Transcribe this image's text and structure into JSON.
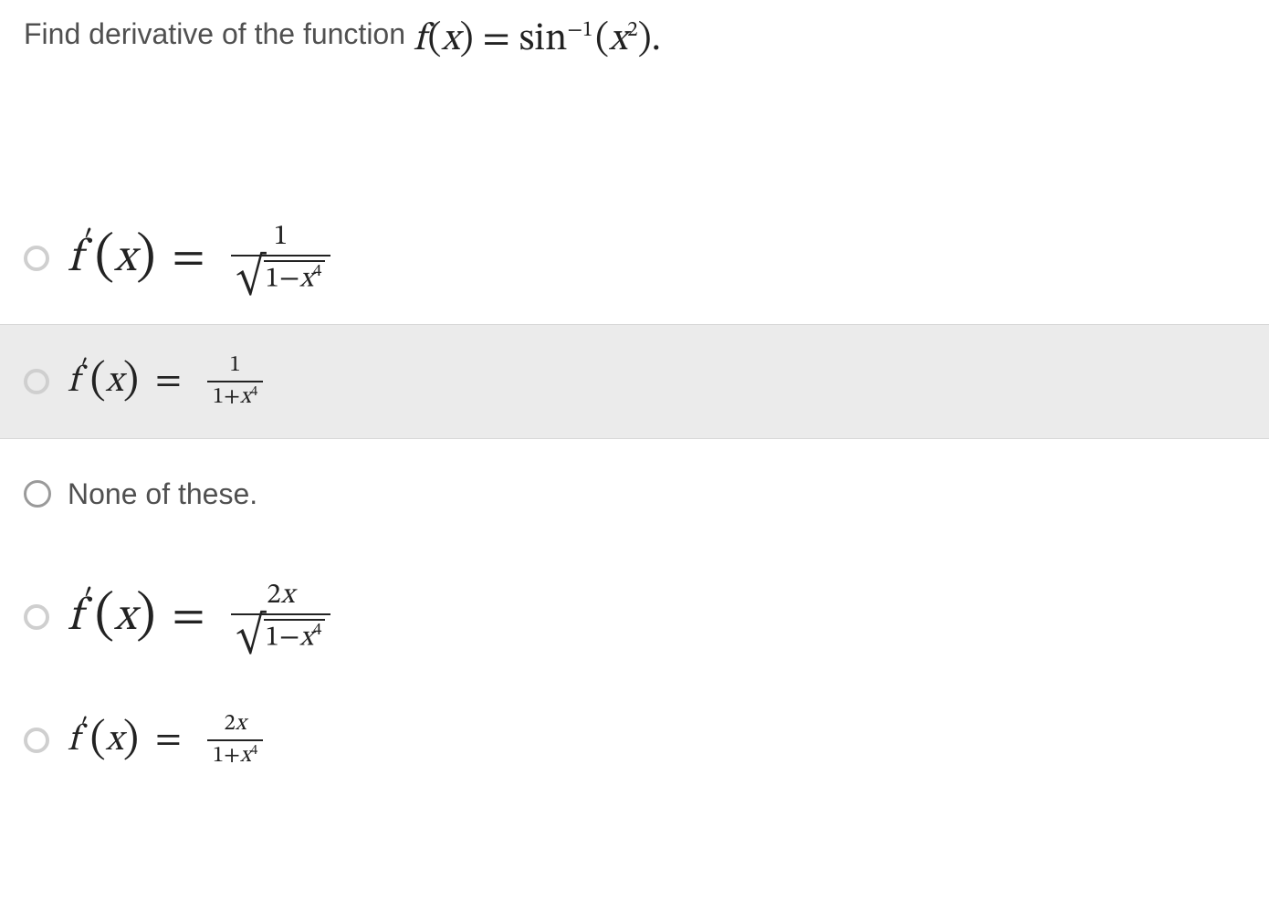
{
  "question": {
    "prefix_text": "Find derivative of the function",
    "math_html": "<span class='f'>f</span><span class='roman'>&#8202;(</span><span class='f'>x</span><span class='roman'>)</span> <span class='roman'>=</span> <span class='roman'>sin</span><sup>&minus;1</sup><span class='roman'>&#8202;(</span><span class='f'>x</span><sup>2</sup><span class='roman'>)</span><span class='roman'>.</span>",
    "text_color": "#505050",
    "math_color": "#222222",
    "font_size_text": 32,
    "font_size_math": 42
  },
  "options": [
    {
      "id": "a",
      "type": "formula",
      "math_size": "big",
      "radio_style": "radio-a",
      "highlight": false,
      "lhs_html": "<span class='f'>f</span><span class='prime'>&#8242;</span><span class='paren'>(</span><span class='x'>x</span><span class='paren'>)</span><span class='eq'>=</span>",
      "numerator_html": "1",
      "denominator_is_sqrt": true,
      "radicand_html": "1&minus;<span class='it'>x</span><sup>4</sup>",
      "denominator_html": "",
      "text": ""
    },
    {
      "id": "b",
      "type": "formula",
      "math_size": "small",
      "radio_style": "radio-b",
      "highlight": true,
      "lhs_html": "<span class='f'>f</span><span class='prime'>&#8242;</span><span class='paren'>(</span><span class='x'>x</span><span class='paren'>)</span><span class='eq'>=</span>",
      "numerator_html": "1",
      "denominator_is_sqrt": false,
      "radicand_html": "",
      "denominator_html": "1+<span class='it'>x</span><sup>4</sup>",
      "text": ""
    },
    {
      "id": "c",
      "type": "text",
      "math_size": "",
      "radio_style": "radio-c",
      "highlight": false,
      "lhs_html": "",
      "numerator_html": "",
      "denominator_is_sqrt": false,
      "radicand_html": "",
      "denominator_html": "",
      "text": "None of these."
    },
    {
      "id": "d",
      "type": "formula",
      "math_size": "big",
      "radio_style": "radio-d",
      "highlight": false,
      "lhs_html": "<span class='f'>f</span><span class='prime'>&#8242;</span><span class='paren'>(</span><span class='x'>x</span><span class='paren'>)</span><span class='eq'>=</span>",
      "numerator_html": "2<span class='it'>x</span>",
      "denominator_is_sqrt": true,
      "radicand_html": "1&minus;<span class='it'>x</span><sup>4</sup>",
      "denominator_html": "",
      "text": ""
    },
    {
      "id": "e",
      "type": "formula",
      "math_size": "small",
      "radio_style": "radio-e",
      "highlight": false,
      "lhs_html": "<span class='f'>f</span><span class='prime'>&#8242;</span><span class='paren'>(</span><span class='x'>x</span><span class='paren'>)</span><span class='eq'>=</span>",
      "numerator_html": "2<span class='it'>x</span>",
      "denominator_is_sqrt": false,
      "radicand_html": "",
      "denominator_html": "1+<span class='it'>x</span><sup>4</sup>",
      "text": ""
    }
  ],
  "colors": {
    "page_background": "#ffffff",
    "highlight_background": "#ebebeb",
    "highlight_border": "#d8d8d8",
    "radio_light": "#cfcfcf",
    "radio_dark": "#9a9a9a",
    "math_text": "#222222",
    "body_text": "#505050"
  }
}
